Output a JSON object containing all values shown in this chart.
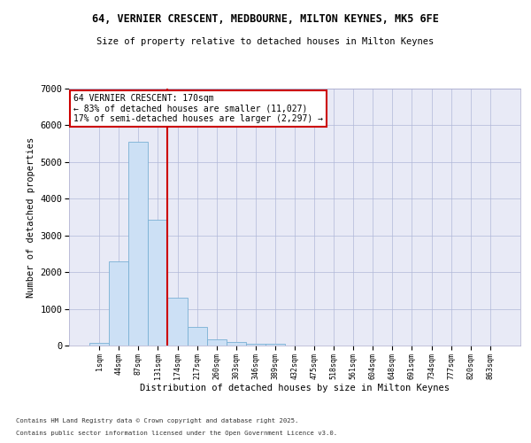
{
  "title1": "64, VERNIER CRESCENT, MEDBOURNE, MILTON KEYNES, MK5 6FE",
  "title2": "Size of property relative to detached houses in Milton Keynes",
  "xlabel": "Distribution of detached houses by size in Milton Keynes",
  "ylabel": "Number of detached properties",
  "categories": [
    "1sqm",
    "44sqm",
    "87sqm",
    "131sqm",
    "174sqm",
    "217sqm",
    "260sqm",
    "303sqm",
    "346sqm",
    "389sqm",
    "432sqm",
    "475sqm",
    "518sqm",
    "561sqm",
    "604sqm",
    "648sqm",
    "691sqm",
    "734sqm",
    "777sqm",
    "820sqm",
    "863sqm"
  ],
  "values": [
    75,
    2300,
    5550,
    3420,
    1310,
    500,
    175,
    90,
    60,
    40,
    0,
    0,
    0,
    0,
    0,
    0,
    0,
    0,
    0,
    0,
    0
  ],
  "bar_color": "#cce0f5",
  "bar_edge_color": "#7ab0d4",
  "vline_color": "#cc0000",
  "vline_index": 3.5,
  "annotation_text": "64 VERNIER CRESCENT: 170sqm\n← 83% of detached houses are smaller (11,027)\n17% of semi-detached houses are larger (2,297) →",
  "annotation_box_color": "#cc0000",
  "ylim": [
    0,
    7000
  ],
  "yticks": [
    0,
    1000,
    2000,
    3000,
    4000,
    5000,
    6000,
    7000
  ],
  "grid_color": "#b0b8d8",
  "bg_color": "#e8eaf6",
  "footnote1": "Contains HM Land Registry data © Crown copyright and database right 2025.",
  "footnote2": "Contains public sector information licensed under the Open Government Licence v3.0."
}
